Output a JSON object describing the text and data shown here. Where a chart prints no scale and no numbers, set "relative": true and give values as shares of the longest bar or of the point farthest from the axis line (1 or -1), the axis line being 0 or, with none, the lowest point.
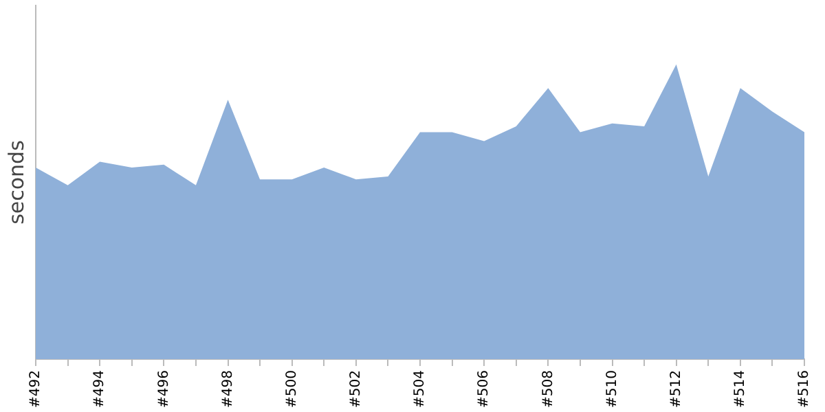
{
  "chart_data": {
    "type": "area",
    "ylabel": "seconds",
    "relative": true,
    "grid": false,
    "legend": false,
    "categories": [
      "#492",
      null,
      "#494",
      null,
      "#496",
      null,
      "#498",
      null,
      "#500",
      null,
      "#502",
      null,
      "#504",
      null,
      "#506",
      null,
      "#508",
      null,
      "#510",
      null,
      "#512",
      null,
      "#514",
      null,
      "#516"
    ],
    "series": [
      {
        "color": "#8fb0d9",
        "values": [
          0.65,
          0.59,
          0.67,
          0.65,
          0.66,
          0.59,
          0.88,
          0.61,
          0.61,
          0.65,
          0.61,
          0.62,
          0.77,
          0.77,
          0.74,
          0.79,
          0.92,
          0.77,
          0.8,
          0.79,
          1,
          0.62,
          0.92,
          0.84,
          0.77
        ]
      }
    ]
  }
}
